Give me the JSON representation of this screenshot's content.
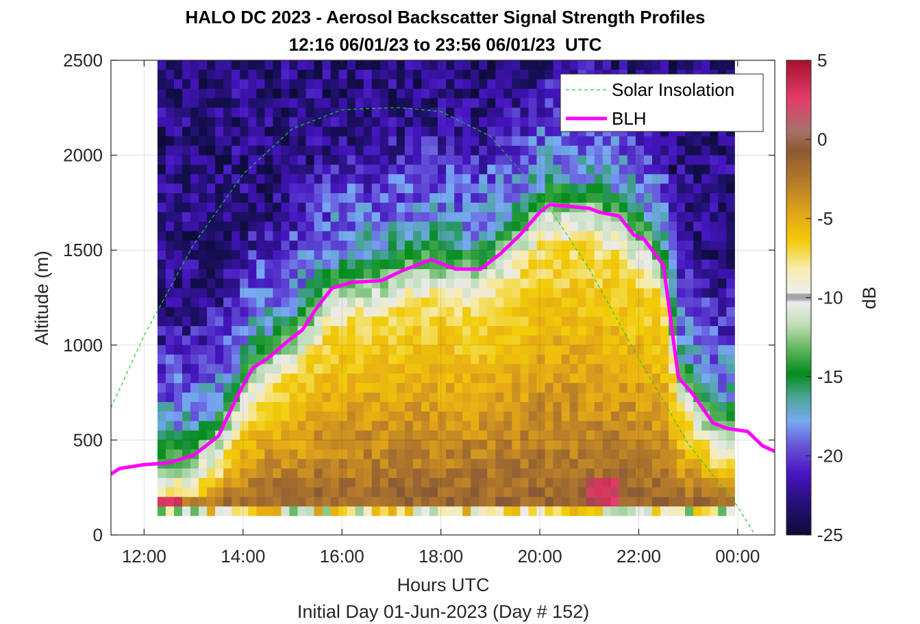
{
  "chart_data": {
    "type": "heatmap",
    "title": "HALO DC 2023 - Aerosol Backscatter Signal Strength Profiles",
    "subtitle": "12:16 06/01/23 to 23:56 06/01/23  UTC",
    "xlabel": "Hours UTC",
    "xlabel2": "Initial Day 01-Jun-2023 (Day # 152)",
    "ylabel": "Altitude (m)",
    "colorbar_label": "dB",
    "xlim": [
      11.33,
      24.75
    ],
    "ylim": [
      0,
      2500
    ],
    "x_ticks": [
      12,
      14,
      16,
      18,
      20,
      22,
      24
    ],
    "x_tick_labels": [
      "12:00",
      "14:00",
      "16:00",
      "18:00",
      "20:00",
      "22:00",
      "00:00"
    ],
    "y_ticks": [
      0,
      500,
      1000,
      1500,
      2000,
      2500
    ],
    "y_tick_labels": [
      "0",
      "500",
      "1000",
      "1500",
      "2000",
      "2500"
    ],
    "colorbar_range": [
      -25,
      5
    ],
    "colorbar_ticks": [
      5,
      0,
      -5,
      -10,
      -15,
      -20,
      -25
    ],
    "colorbar_tick_labels": [
      "5",
      "0",
      "-5",
      "-10",
      "-15",
      "-20",
      "-25"
    ],
    "grid": true,
    "legend_position": "top-right",
    "heatmap": {
      "time_range": [
        12.27,
        23.93
      ],
      "altitude_range": [
        100,
        2500
      ],
      "description": "gridded backscatter signal strength in dB"
    },
    "series": [
      {
        "name": "Solar Insolation",
        "style": "dashed",
        "color": "#22cc22",
        "x": [
          11.33,
          12.0,
          13.0,
          14.0,
          15.0,
          16.0,
          17.0,
          17.2,
          18.0,
          19.0,
          20.0,
          21.0,
          22.0,
          23.0,
          24.0,
          24.35,
          24.75
        ],
        "y": [
          670,
          1050,
          1530,
          1900,
          2140,
          2240,
          2250,
          2250,
          2230,
          2100,
          1800,
          1400,
          930,
          480,
          150,
          0,
          0
        ]
      },
      {
        "name": "BLH",
        "style": "solid",
        "color": "#ff00ff",
        "x": [
          11.33,
          11.5,
          12.0,
          12.5,
          13.0,
          13.5,
          13.9,
          14.2,
          14.5,
          14.9,
          15.2,
          15.5,
          15.8,
          16.2,
          16.8,
          17.2,
          17.8,
          18.3,
          18.8,
          19.2,
          19.6,
          20.0,
          20.2,
          20.6,
          21.0,
          21.2,
          21.6,
          21.9,
          22.1,
          22.5,
          22.8,
          23.1,
          23.5,
          23.8,
          24.2,
          24.5,
          24.75
        ],
        "y": [
          320,
          350,
          370,
          380,
          420,
          520,
          740,
          880,
          930,
          1020,
          1080,
          1200,
          1300,
          1330,
          1340,
          1390,
          1450,
          1400,
          1400,
          1480,
          1580,
          1700,
          1740,
          1730,
          1720,
          1700,
          1680,
          1580,
          1560,
          1420,
          830,
          740,
          590,
          560,
          545,
          470,
          440
        ]
      }
    ]
  }
}
